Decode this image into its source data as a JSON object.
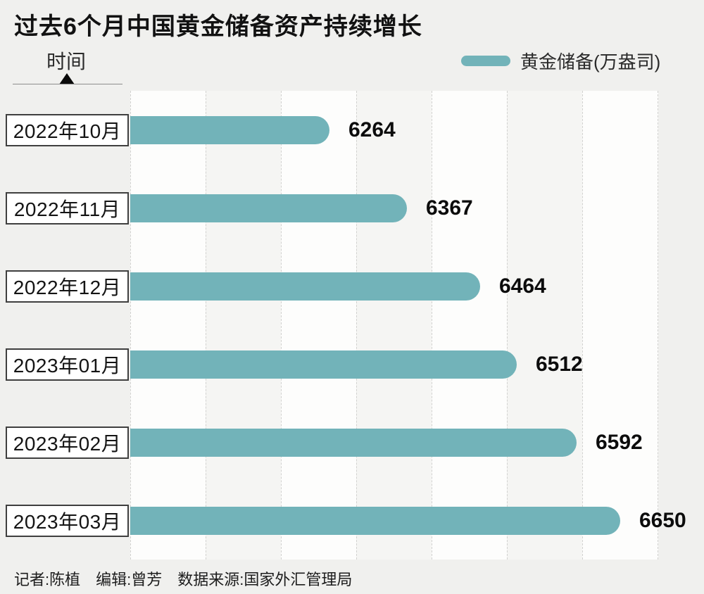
{
  "title": "过去6个月中国黄金储备资产持续增长",
  "axis": {
    "y_label": "时间"
  },
  "legend": {
    "label": "黄金储备(万盎司)"
  },
  "footer": {
    "credits": "记者:陈植　编辑:曾芳　数据来源:国家外汇管理局"
  },
  "colors": {
    "bar": "#72b3b9",
    "background": "#f0f0ee",
    "band_light": "#fdfdfc",
    "band_gray": "#f5f5f3",
    "value_text": "#0c0c0c"
  },
  "chart_data": {
    "type": "bar",
    "orientation": "horizontal",
    "title": "过去6个月中国黄金储备资产持续增长",
    "categories": [
      "2022年10月",
      "2022年11月",
      "2022年12月",
      "2023年01月",
      "2023年02月",
      "2023年03月"
    ],
    "values": [
      6264,
      6367,
      6464,
      6512,
      6592,
      6650
    ],
    "series_name": "黄金储备(万盎司)",
    "xlabel": "黄金储备(万盎司)",
    "ylabel": "时间",
    "xlim": [
      6000,
      6700
    ],
    "grid": "vertical-dashed",
    "grid_interval": 100,
    "legend_position": "top-right",
    "value_labels": true
  }
}
